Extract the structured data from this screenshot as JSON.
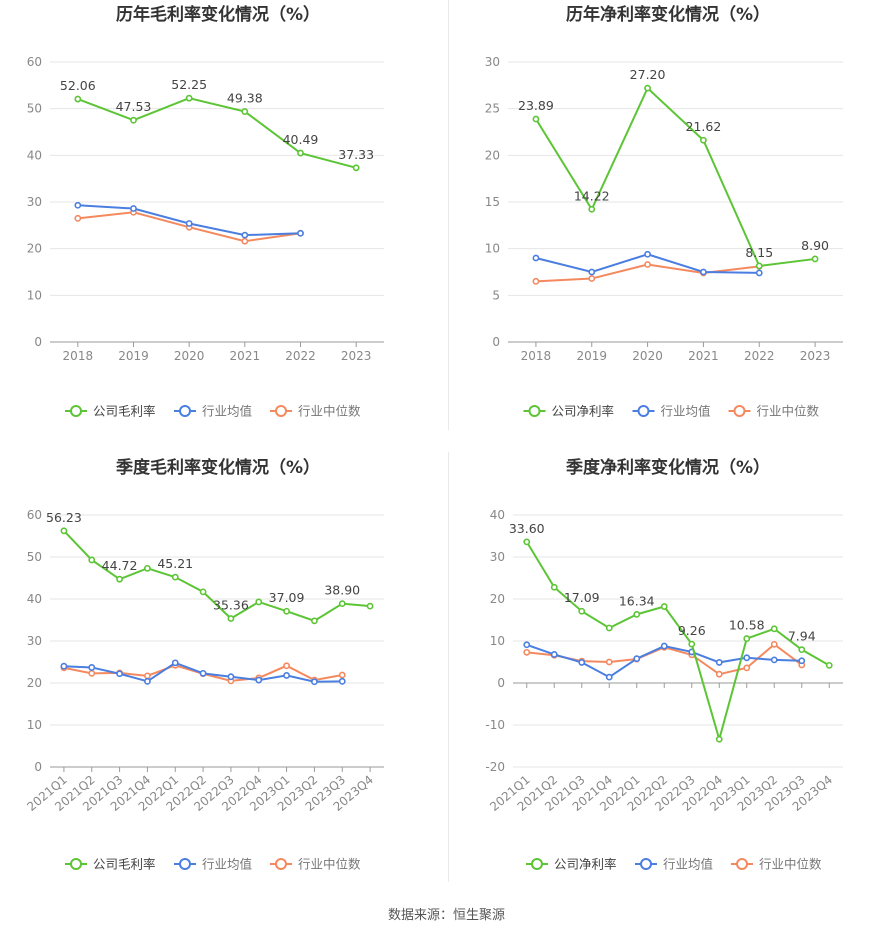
{
  "charts": [
    {
      "id": "annual-gross",
      "title": "历年毛利率变化情况（%）",
      "type": "line",
      "x": [
        "2018",
        "2019",
        "2020",
        "2021",
        "2022",
        "2023"
      ],
      "yticks": [
        0,
        10,
        20,
        30,
        40,
        50,
        60
      ],
      "ylim": [
        0,
        60
      ],
      "rotate_x": false,
      "series": [
        {
          "name": "公司毛利率",
          "color": "#5cc535",
          "values": [
            52.06,
            47.53,
            52.25,
            49.38,
            40.49,
            37.33
          ],
          "labels": [
            "52.06",
            "47.53",
            "52.25",
            "49.38",
            "40.49",
            "37.33"
          ]
        },
        {
          "name": "行业均值",
          "color": "#4a7ee0",
          "values": [
            29.3,
            28.6,
            25.4,
            22.9,
            23.3,
            null
          ],
          "labels": []
        },
        {
          "name": "行业中位数",
          "color": "#f4895f",
          "values": [
            26.5,
            27.8,
            24.6,
            21.6,
            23.3,
            null
          ],
          "labels": []
        }
      ]
    },
    {
      "id": "annual-net",
      "title": "历年净利率变化情况（%）",
      "type": "line",
      "x": [
        "2018",
        "2019",
        "2020",
        "2021",
        "2022",
        "2023"
      ],
      "yticks": [
        0,
        5,
        10,
        15,
        20,
        25,
        30
      ],
      "ylim": [
        0,
        30
      ],
      "rotate_x": false,
      "series": [
        {
          "name": "公司净利率",
          "color": "#5cc535",
          "values": [
            23.89,
            14.22,
            27.2,
            21.62,
            8.15,
            8.9
          ],
          "labels": [
            "23.89",
            "14.22",
            "27.20",
            "21.62",
            "8.15",
            "8.90"
          ]
        },
        {
          "name": "行业均值",
          "color": "#4a7ee0",
          "values": [
            9.0,
            7.5,
            9.4,
            7.5,
            7.4,
            null
          ],
          "labels": []
        },
        {
          "name": "行业中位数",
          "color": "#f4895f",
          "values": [
            6.5,
            6.8,
            8.3,
            7.4,
            8.1,
            null
          ],
          "labels": []
        }
      ]
    },
    {
      "id": "quarterly-gross",
      "title": "季度毛利率变化情况（%）",
      "type": "line",
      "x": [
        "2021Q1",
        "2021Q2",
        "2021Q3",
        "2021Q4",
        "2022Q1",
        "2022Q2",
        "2022Q3",
        "2022Q4",
        "2023Q1",
        "2023Q2",
        "2023Q3",
        "2023Q4"
      ],
      "yticks": [
        0,
        10,
        20,
        30,
        40,
        50,
        60
      ],
      "ylim": [
        0,
        60
      ],
      "rotate_x": true,
      "series": [
        {
          "name": "公司毛利率",
          "color": "#5cc535",
          "values": [
            56.23,
            49.3,
            44.72,
            47.3,
            45.21,
            41.7,
            35.36,
            39.3,
            37.09,
            34.8,
            38.9,
            38.3
          ],
          "labels": [
            "56.23",
            "",
            "44.72",
            "",
            "45.21",
            "",
            "35.36",
            "",
            "37.09",
            "",
            "38.90",
            ""
          ]
        },
        {
          "name": "行业均值",
          "color": "#4a7ee0",
          "values": [
            24.0,
            23.7,
            22.2,
            20.4,
            24.8,
            22.3,
            21.5,
            20.7,
            21.8,
            20.3,
            20.4,
            null
          ],
          "labels": []
        },
        {
          "name": "行业中位数",
          "color": "#f4895f",
          "values": [
            23.6,
            22.3,
            22.4,
            21.7,
            24.2,
            22.2,
            20.5,
            21.2,
            24.1,
            20.7,
            21.9,
            null
          ],
          "labels": []
        }
      ]
    },
    {
      "id": "quarterly-net",
      "title": "季度净利率变化情况（%）",
      "type": "line",
      "x": [
        "2021Q1",
        "2021Q2",
        "2021Q3",
        "2021Q4",
        "2022Q1",
        "2022Q2",
        "2022Q3",
        "2022Q4",
        "2023Q1",
        "2023Q2",
        "2023Q3",
        "2023Q4"
      ],
      "yticks": [
        -20,
        -10,
        0,
        10,
        20,
        30,
        40
      ],
      "ylim": [
        -20,
        40
      ],
      "rotate_x": true,
      "series": [
        {
          "name": "公司净利率",
          "color": "#5cc535",
          "values": [
            33.6,
            22.8,
            17.09,
            13.1,
            16.34,
            18.2,
            9.26,
            -13.4,
            10.58,
            12.9,
            7.94,
            4.2
          ],
          "labels": [
            "33.60",
            "",
            "17.09",
            "",
            "16.34",
            "",
            "9.26",
            "",
            "10.58",
            "",
            "7.94",
            ""
          ]
        },
        {
          "name": "行业均值",
          "color": "#4a7ee0",
          "values": [
            9.1,
            6.8,
            4.9,
            1.4,
            5.8,
            8.8,
            7.4,
            4.9,
            6.0,
            5.5,
            5.3,
            null
          ],
          "labels": []
        },
        {
          "name": "行业中位数",
          "color": "#f4895f",
          "values": [
            7.3,
            6.6,
            5.2,
            5.0,
            5.7,
            8.5,
            6.7,
            2.1,
            3.6,
            9.2,
            4.3,
            null
          ],
          "labels": []
        }
      ]
    }
  ],
  "source": "数据来源：恒生聚源"
}
